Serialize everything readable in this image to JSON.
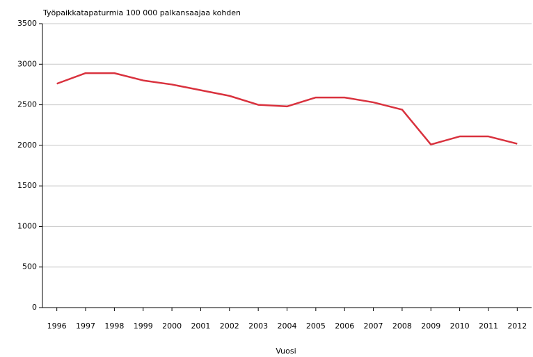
{
  "chart_data": {
    "type": "line",
    "title": "Työpaikkatapaturmia 100 000 palkansaajaa kohden",
    "x_label": "Vuosi",
    "categories": [
      "1996",
      "1997",
      "1998",
      "1999",
      "2000",
      "2001",
      "2002",
      "2003",
      "2004",
      "2005",
      "2006",
      "2007",
      "2008",
      "2009",
      "2010",
      "2011",
      "2012"
    ],
    "values": [
      2760,
      2890,
      2890,
      2800,
      2750,
      2680,
      2610,
      2500,
      2480,
      2590,
      2590,
      2530,
      2440,
      2010,
      2110,
      2110,
      2020
    ],
    "color": "#d9323e",
    "ylim": [
      0,
      3500
    ],
    "yticks": [
      0,
      500,
      1000,
      1500,
      2000,
      2500,
      3000,
      3500
    ],
    "grid": true
  }
}
